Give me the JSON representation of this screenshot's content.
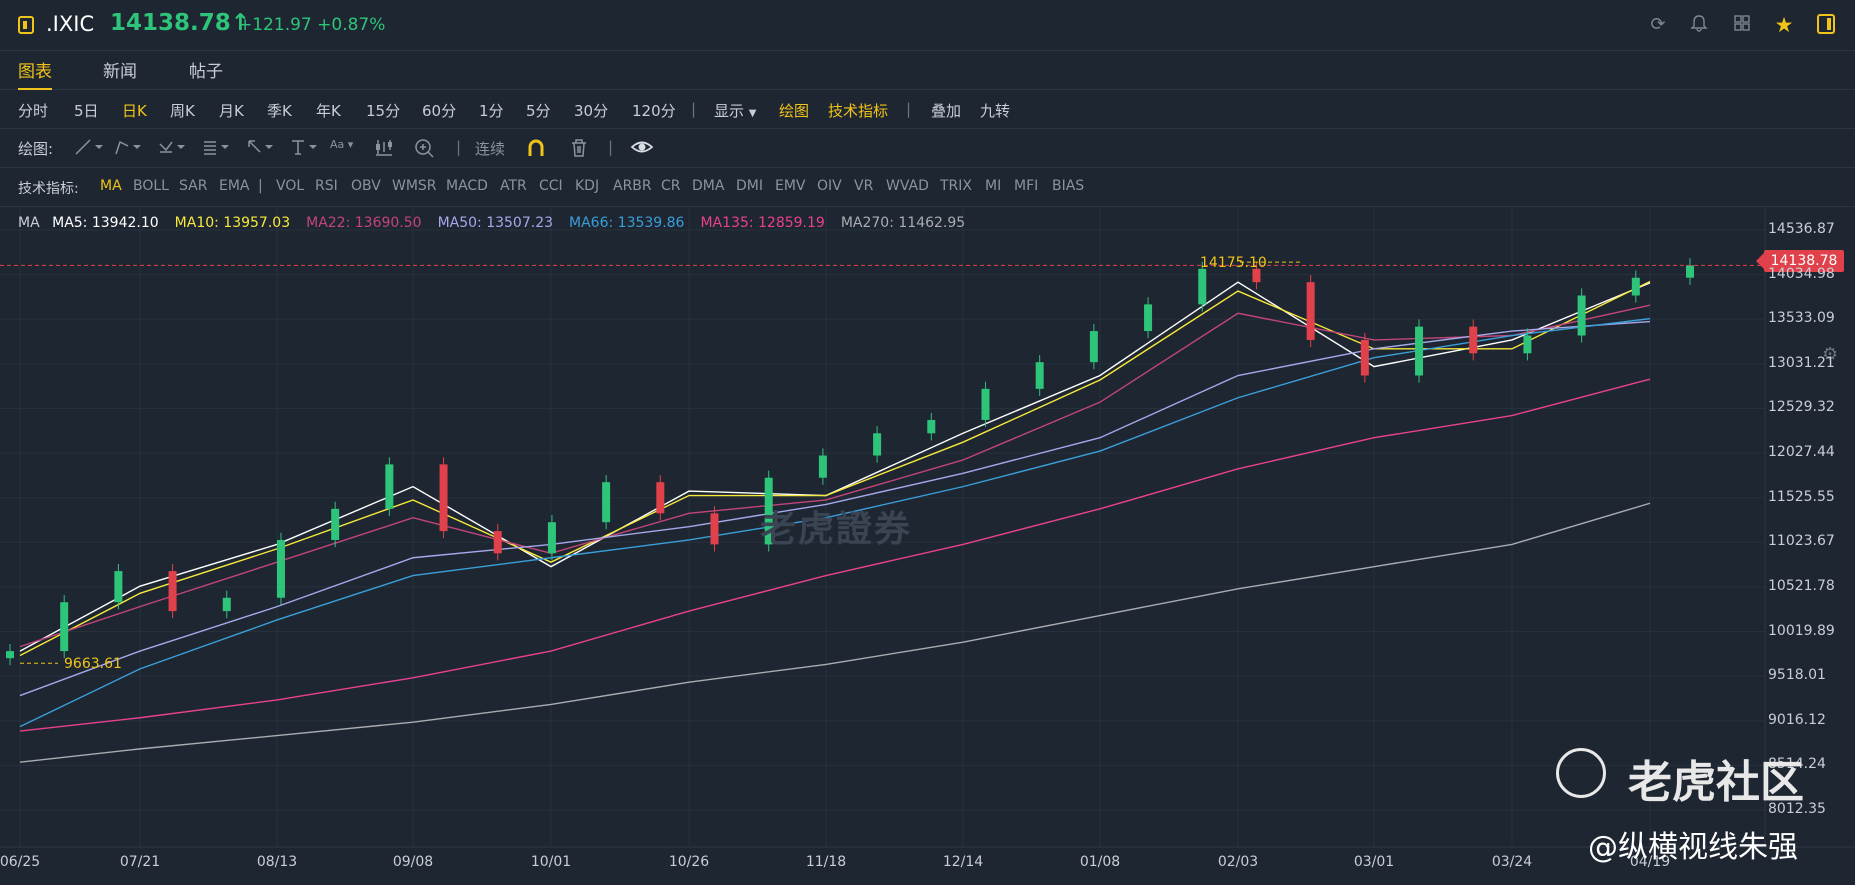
{
  "header": {
    "symbol": ".IXIC",
    "price": "14138.78↑",
    "change": "+121.97 +0.87%"
  },
  "tabs": [
    "图表",
    "新闻",
    "帖子"
  ],
  "periods": [
    "分时",
    "5日",
    "日K",
    "周K",
    "月K",
    "季K",
    "年K",
    "15分",
    "60分",
    "1分",
    "5分",
    "30分",
    "120分"
  ],
  "period_active": "日K",
  "period_extra": {
    "display": "显示",
    "draw": "绘图",
    "tech": "技术指标",
    "overlay": "叠加",
    "nine": "九转"
  },
  "drawbar": {
    "label": "绘图:",
    "continuous": "连续"
  },
  "indicators": {
    "label": "技术指标:",
    "items": [
      "MA",
      "BOLL",
      "SAR",
      "EMA",
      "|",
      "VOL",
      "RSI",
      "OBV",
      "WMSR",
      "MACD",
      "ATR",
      "CCI",
      "KDJ",
      "ARBR",
      "CR",
      "DMA",
      "DMI",
      "EMV",
      "OIV",
      "VR",
      "WVAD",
      "TRIX",
      "MI",
      "MFI",
      "BIAS"
    ]
  },
  "ma_legend": {
    "title": "MA",
    "items": [
      {
        "label": "MA5: ",
        "value": "13942.10",
        "color": "#ffffff"
      },
      {
        "label": "MA10: ",
        "value": "13957.03",
        "color": "#f7e93b"
      },
      {
        "label": "MA22: ",
        "value": "13690.50",
        "color": "#c2457a"
      },
      {
        "label": "MA50: ",
        "value": "13507.23",
        "color": "#a5a8ea"
      },
      {
        "label": "MA66: ",
        "value": "13539.86",
        "color": "#3a9fd9"
      },
      {
        "label": "MA135: ",
        "value": "12859.19",
        "color": "#e9418f"
      },
      {
        "label": "MA270: ",
        "value": "11462.95",
        "color": "#a9acb1"
      }
    ]
  },
  "price_tag": "14138.78",
  "high_label": "14175.10",
  "low_label": "9663.61",
  "y_axis": [
    "14536.87",
    "14034.98",
    "13533.09",
    "13031.21",
    "12529.32",
    "12027.44",
    "11525.55",
    "11023.67",
    "10521.78",
    "10019.89",
    "9518.01",
    "9016.12",
    "8514.24",
    "8012.35"
  ],
  "x_axis": [
    "06/25",
    "07/21",
    "08/13",
    "09/08",
    "10/01",
    "10/26",
    "11/18",
    "12/14",
    "01/08",
    "02/03",
    "03/01",
    "03/24",
    "04/19"
  ],
  "watermark": "老虎證券",
  "community": "老虎社区",
  "author": "@纵横视线朱强",
  "colors": {
    "up": "#2ec47a",
    "down": "#e0414a",
    "accent": "#f0c419",
    "bg": "#1e2631"
  },
  "chart_data": {
    "type": "candlestick",
    "ylim": [
      8012.35,
      14536.87
    ],
    "x": [
      "06/25",
      "07/21",
      "08/13",
      "09/08",
      "10/01",
      "10/26",
      "11/18",
      "12/14",
      "01/08",
      "02/03",
      "03/01",
      "03/24",
      "04/19"
    ],
    "series": [
      {
        "name": "MA5",
        "values": [
          9800,
          10530,
          11000,
          11650,
          10750,
          11600,
          11550,
          12250,
          12900,
          13950,
          13000,
          13300,
          13942.1
        ]
      },
      {
        "name": "MA10",
        "values": [
          9750,
          10450,
          10950,
          11500,
          10800,
          11550,
          11550,
          12150,
          12850,
          13850,
          13200,
          13200,
          13957.03
        ]
      },
      {
        "name": "MA22",
        "values": [
          9850,
          10300,
          10800,
          11300,
          10900,
          11350,
          11500,
          11950,
          12600,
          13600,
          13300,
          13350,
          13690.5
        ]
      },
      {
        "name": "MA50",
        "values": [
          9300,
          9800,
          10300,
          10850,
          11000,
          11200,
          11450,
          11800,
          12200,
          12900,
          13200,
          13400,
          13507.23
        ]
      },
      {
        "name": "MA66",
        "values": [
          8950,
          9600,
          10150,
          10650,
          10850,
          11050,
          11300,
          11650,
          12050,
          12650,
          13100,
          13350,
          13539.86
        ]
      },
      {
        "name": "MA135",
        "values": [
          8900,
          9050,
          9250,
          9500,
          9800,
          10250,
          10650,
          11000,
          11400,
          11850,
          12200,
          12450,
          12859.19
        ]
      },
      {
        "name": "MA270",
        "values": [
          8550,
          8700,
          8850,
          9000,
          9200,
          9450,
          9650,
          9900,
          10200,
          10500,
          10750,
          11000,
          11462.95
        ]
      }
    ],
    "closes": [
      9800,
      10350,
      10700,
      10250,
      10400,
      11050,
      11400,
      11900,
      11150,
      10900,
      11250,
      11700,
      11350,
      11000,
      11750,
      12000,
      12250,
      12400,
      12750,
      13050,
      13400,
      13700,
      14100,
      13950,
      13300,
      12900,
      13450,
      13150,
      13350,
      13800,
      14000,
      14138.78
    ],
    "annotations": [
      {
        "label": "14175.10",
        "value": 14175.1
      },
      {
        "label": "9663.61",
        "value": 9663.61
      }
    ],
    "legend": "top-left",
    "grid": true
  }
}
